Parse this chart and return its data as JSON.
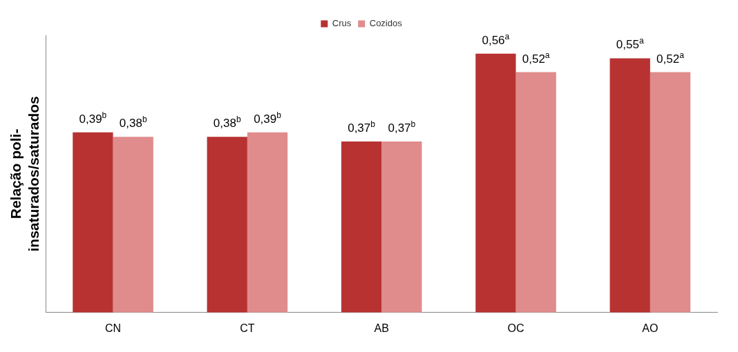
{
  "chart_data": {
    "type": "bar",
    "ylabel": "Relação poli-insaturados/saturados",
    "categories": [
      "CN",
      "CT",
      "AB",
      "OC",
      "AO"
    ],
    "series": [
      {
        "name": "Crus",
        "color": "#b83232",
        "values": [
          0.39,
          0.38,
          0.37,
          0.56,
          0.55
        ],
        "value_labels": [
          "0,39$^{b}$",
          "0,38$^{b}$",
          "0,37$^{b}$",
          "0,56$^{a}$",
          "0,55$^{a}$"
        ]
      },
      {
        "name": "Cozidos",
        "color": "#e08c8c",
        "values": [
          0.38,
          0.39,
          0.37,
          0.52,
          0.52
        ],
        "value_labels": [
          "0,38$^{b}$",
          "0,39$^{b}$",
          "0,37$^{b}$",
          "0,52$^{a}$",
          "0,52$^{a}$"
        ]
      }
    ],
    "ylim": [
      0,
      0.6
    ],
    "tick_labels": "x",
    "grid": false,
    "legend": "top"
  }
}
